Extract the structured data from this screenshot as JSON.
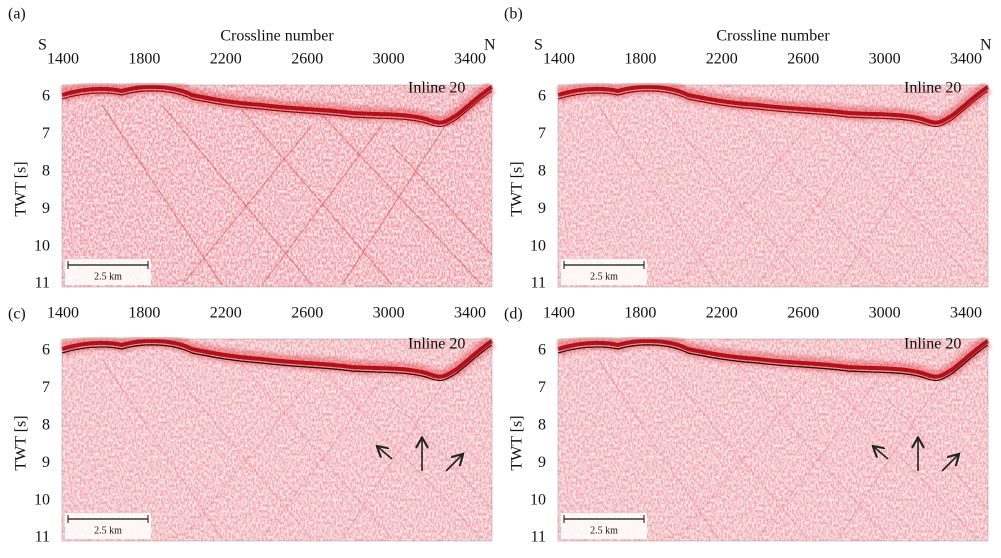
{
  "panels": [
    {
      "label": "(a)",
      "x_axis_title": "Crossline number",
      "left": "S",
      "right": "N",
      "x_ticks": [
        "1400",
        "1800",
        "2200",
        "2600",
        "3000",
        "3400"
      ],
      "y_axis_title": "TWT [s]",
      "y_ticks": [
        "6",
        "7",
        "8",
        "9",
        "10",
        "11"
      ],
      "annotation": "Inline 20",
      "scale_bar": "2.5 km"
    },
    {
      "label": "(b)",
      "x_axis_title": "Crossline number",
      "left": "S",
      "right": "N",
      "x_ticks": [
        "1400",
        "1800",
        "2200",
        "2600",
        "3000",
        "3400"
      ],
      "y_axis_title": "TWT [s]",
      "y_ticks": [
        "6",
        "7",
        "8",
        "9",
        "10",
        "11"
      ],
      "annotation": "Inline 20",
      "scale_bar": "2.5 km"
    },
    {
      "label": "(c)",
      "x_ticks": [
        "1400",
        "1800",
        "2200",
        "2600",
        "3000",
        "3400"
      ],
      "y_axis_title": "TWT [s]",
      "y_ticks": [
        "6",
        "7",
        "8",
        "9",
        "10",
        "11"
      ],
      "annotation": "Inline 20",
      "scale_bar": "2.5 km"
    },
    {
      "label": "(d)",
      "x_ticks": [
        "1400",
        "1800",
        "2200",
        "2600",
        "3000",
        "3400"
      ],
      "y_axis_title": "TWT [s]",
      "y_ticks": [
        "6",
        "7",
        "8",
        "9",
        "10",
        "11"
      ],
      "annotation": "Inline 20",
      "scale_bar": "2.5 km"
    }
  ]
}
